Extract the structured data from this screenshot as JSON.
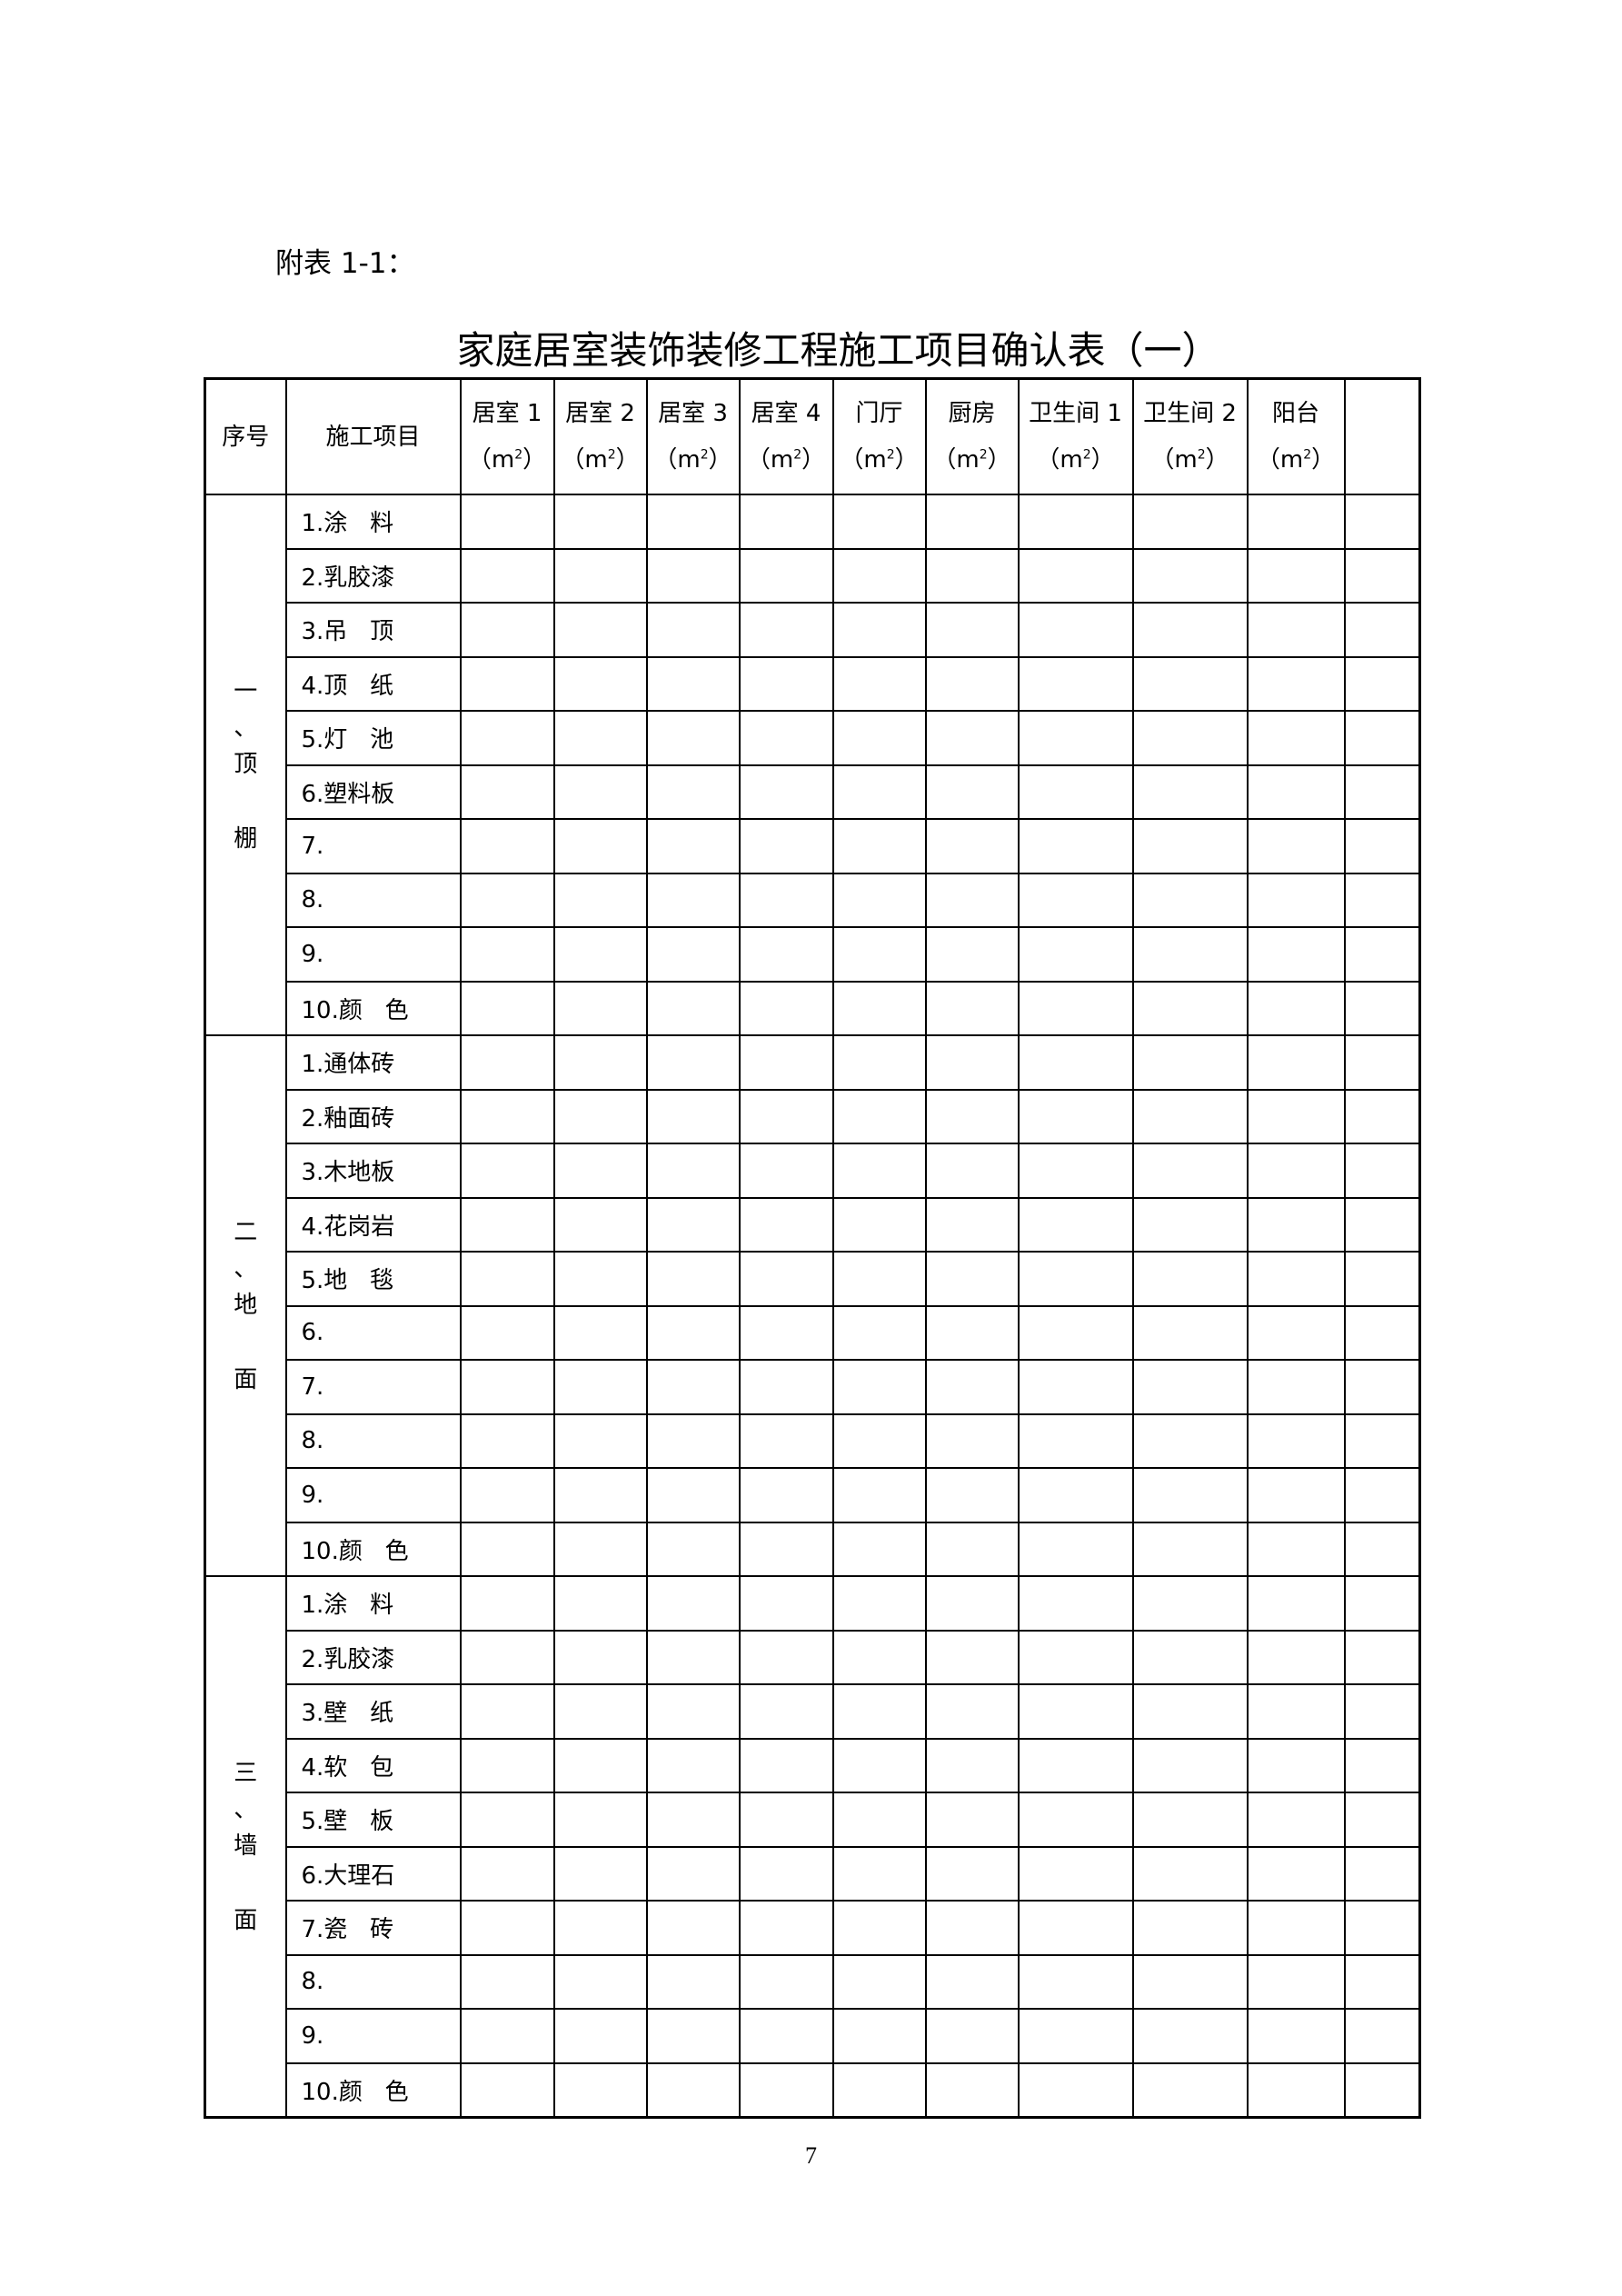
{
  "appendix_label": "附表 1-1：",
  "title": "家庭居室装饰装修工程施工项目确认表（一）",
  "header": {
    "seq": "序号",
    "item": "施工项目",
    "unit_prefix": "（m",
    "unit_sup": "2",
    "unit_suffix": "）",
    "rooms": [
      "居室 1",
      "居室 2",
      "居室 3",
      "居室 4",
      "门厅",
      "厨房",
      "卫生间 1",
      "卫生间 2",
      "阳台",
      ""
    ]
  },
  "sections": [
    {
      "label": [
        "一",
        "、",
        "顶",
        "棚"
      ],
      "items": [
        "1.涂   料",
        "2.乳胶漆",
        "3.吊   顶",
        "4.顶   纸",
        "5.灯   池",
        "6.塑料板",
        "7.",
        "8.",
        "9.",
        "10.颜   色"
      ]
    },
    {
      "label": [
        "二",
        "、",
        "地",
        "面"
      ],
      "items": [
        "1.通体砖",
        "2.釉面砖",
        "3.木地板",
        "4.花岗岩",
        "5.地   毯",
        "6.",
        "7.",
        "8.",
        "9.",
        "10.颜   色"
      ]
    },
    {
      "label": [
        "三",
        "、",
        "墙",
        "面"
      ],
      "items": [
        "1.涂   料",
        "2.乳胶漆",
        "3.壁   纸",
        "4.软   包",
        "5.壁   板",
        "6.大理石",
        "7.瓷   砖",
        "8.",
        "9.",
        "10.颜   色"
      ]
    }
  ],
  "page_number": "7"
}
